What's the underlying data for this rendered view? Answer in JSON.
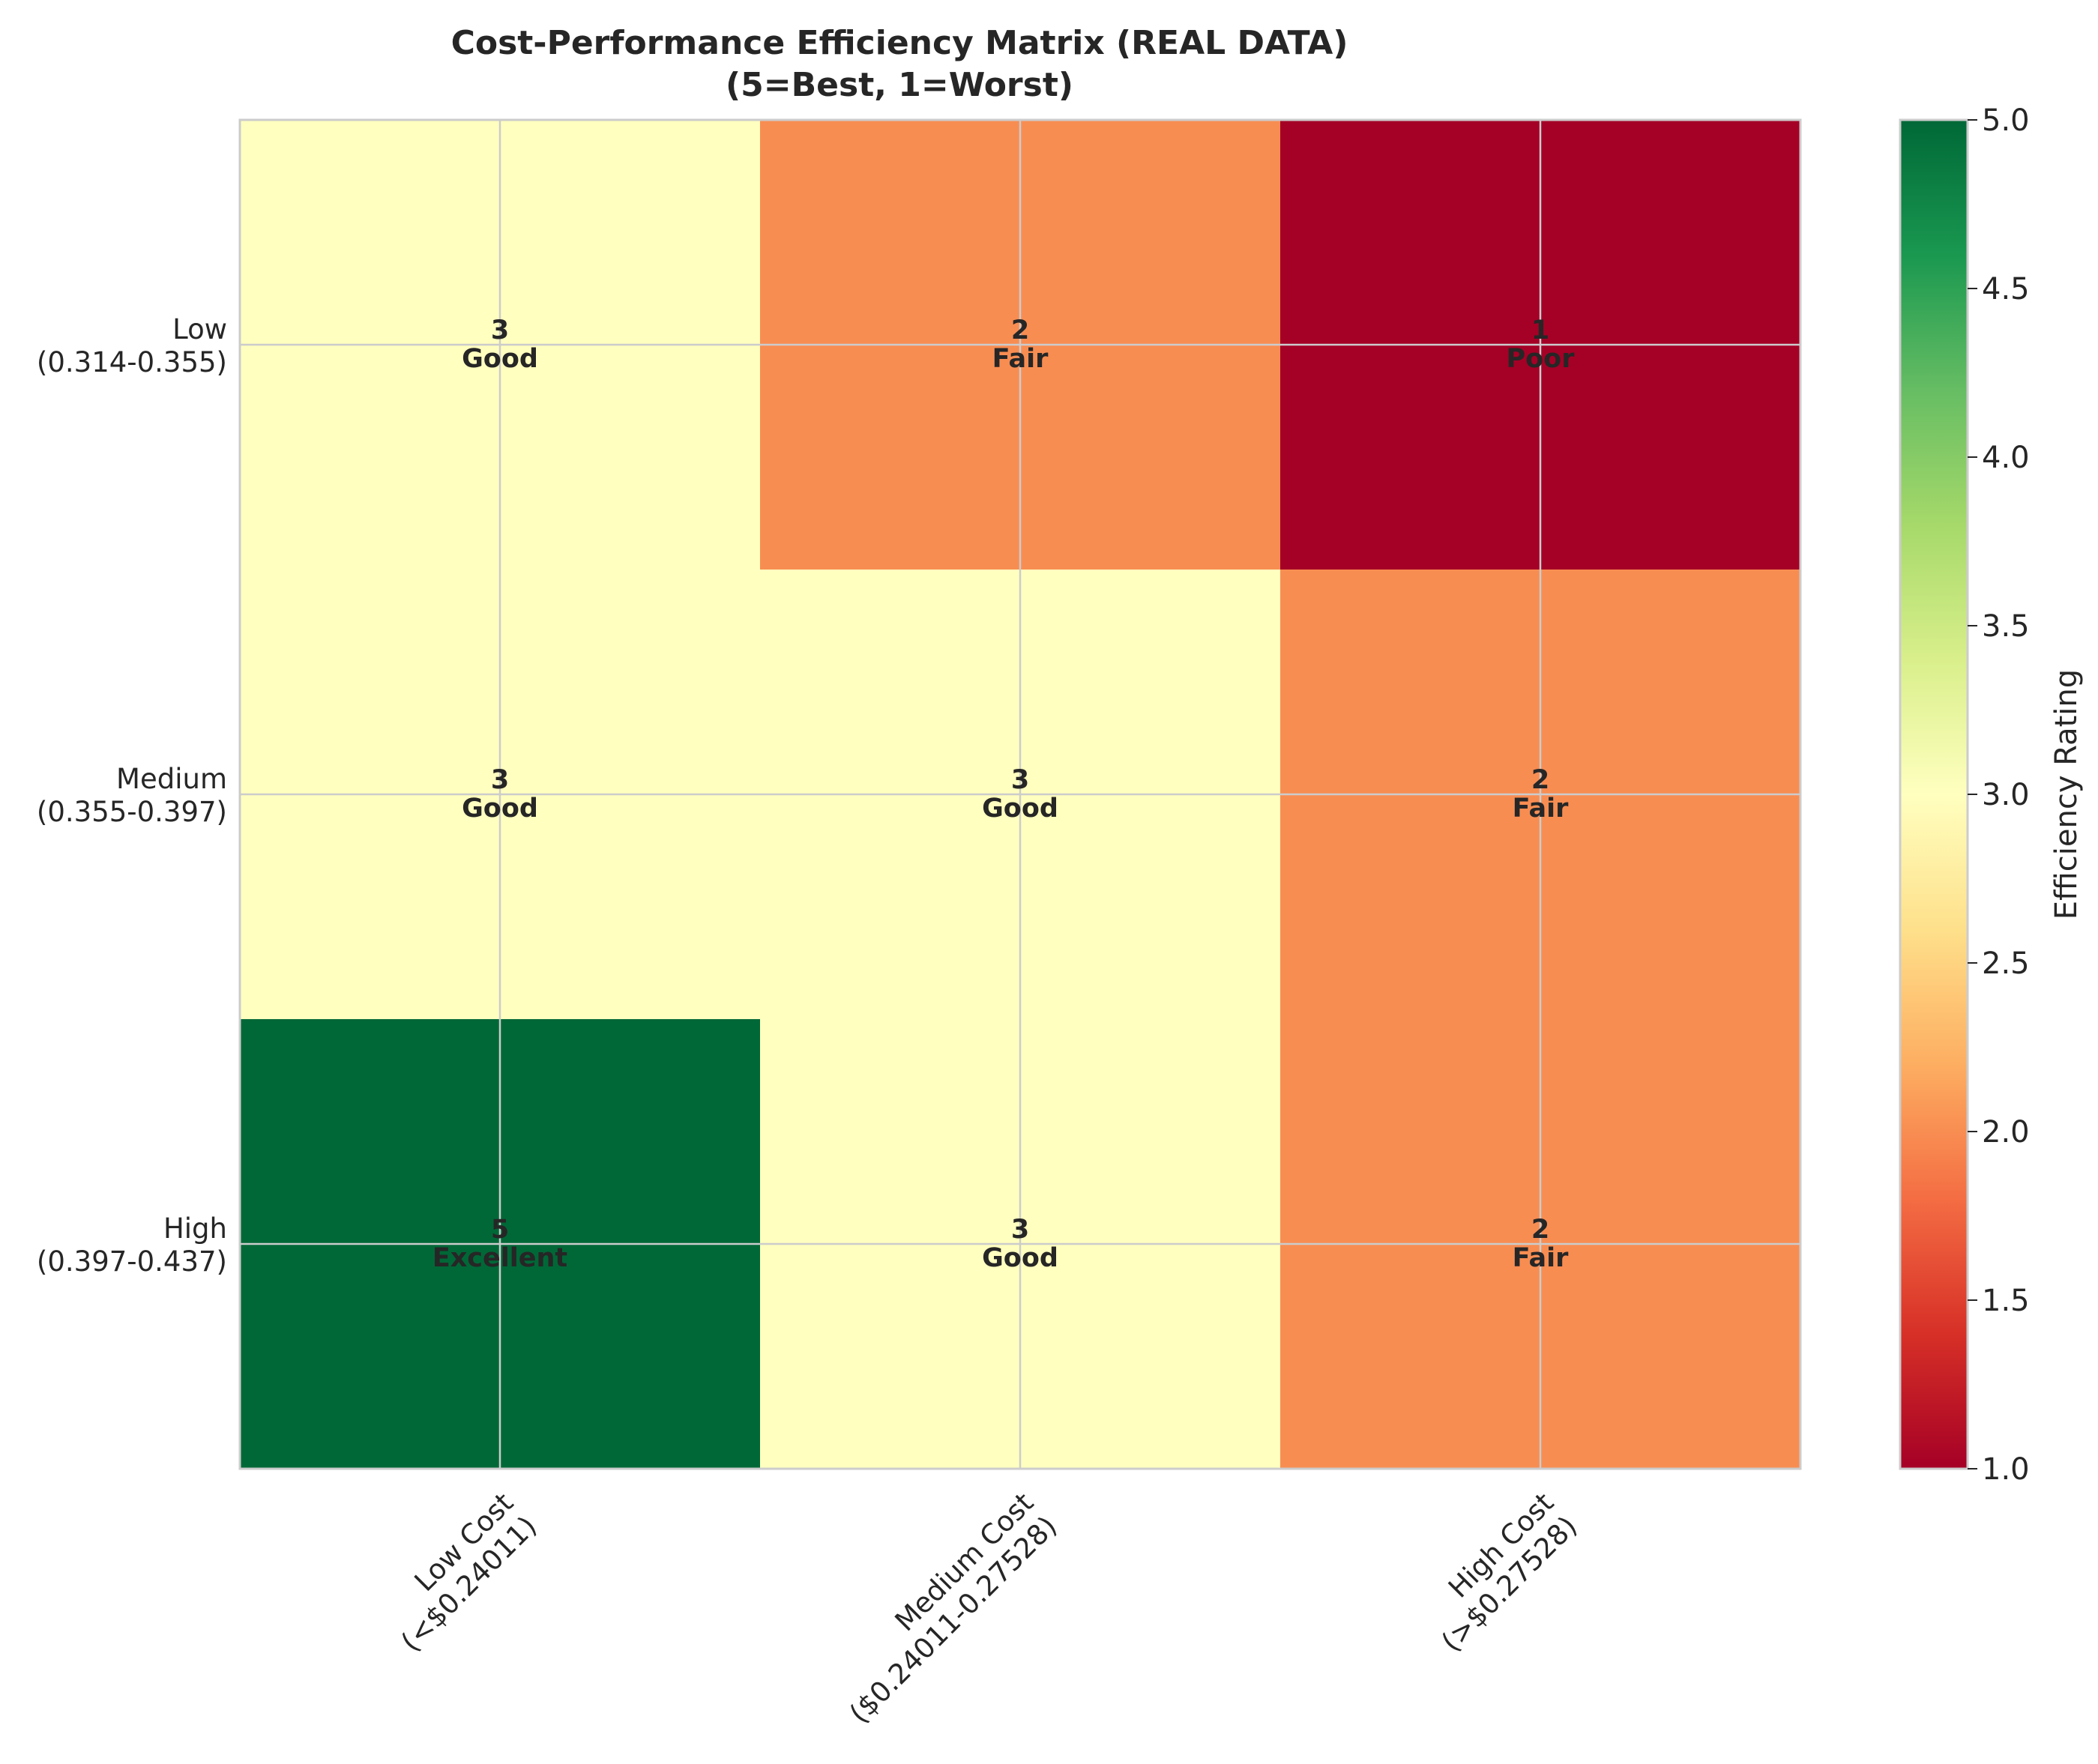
{
  "chart_data": {
    "type": "heatmap",
    "title_lines": [
      "Cost-Performance Efficiency Matrix (REAL DATA)",
      "(5=Best, 1=Worst)"
    ],
    "x_categories": [
      [
        "Low Cost",
        "(<$0.24011)"
      ],
      [
        "Medium Cost",
        "($0.24011-0.27528)"
      ],
      [
        "High Cost",
        "(>$0.27528)"
      ]
    ],
    "y_categories": [
      [
        "Low",
        "(0.314-0.355)"
      ],
      [
        "Medium",
        "(0.355-0.397)"
      ],
      [
        "High",
        "(0.397-0.437)"
      ]
    ],
    "values": [
      [
        3,
        2,
        1
      ],
      [
        3,
        3,
        2
      ],
      [
        5,
        3,
        2
      ]
    ],
    "value_labels": [
      [
        "Good",
        "Fair",
        "Poor"
      ],
      [
        "Good",
        "Good",
        "Fair"
      ],
      [
        "Excellent",
        "Good",
        "Fair"
      ]
    ],
    "colorbar": {
      "label": "Efficiency Rating",
      "range": [
        1,
        5
      ],
      "ticks": [
        "1.0",
        "1.5",
        "2.0",
        "2.5",
        "3.0",
        "3.5",
        "4.0",
        "4.5",
        "5.0"
      ],
      "colormap": "RdYlGn"
    },
    "colors": {
      "1": "#a50026",
      "2": "#f88d52",
      "3": "#ffffbf",
      "5": "#006837"
    },
    "grid": true
  }
}
